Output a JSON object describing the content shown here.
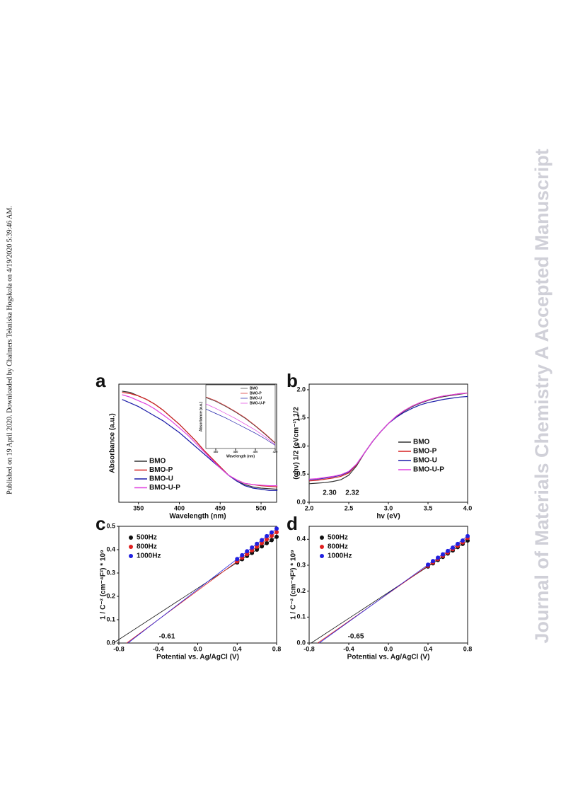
{
  "side_note": "Published on 19 April 2020. Downloaded by Chalmers Tekniska Hogskola on 4/19/2020 5:39:46 AM.",
  "watermark": "Journal of Materials Chemistry A Accepted Manuscript",
  "chart_data": [
    {
      "type": "line",
      "label": "a",
      "xlabel": "Wavelength (nm)",
      "ylabel": "Absorbance (a.u.)",
      "x": [
        330,
        340,
        350,
        360,
        370,
        380,
        390,
        400,
        410,
        420,
        430,
        440,
        450,
        460,
        470,
        480,
        490,
        500,
        510,
        520
      ],
      "xlim": [
        326,
        519
      ],
      "xticks": [
        350,
        400,
        450,
        500
      ],
      "ylim": [
        0,
        1
      ],
      "series": [
        {
          "name": "BMO",
          "color": "#333333",
          "values": [
            0.94,
            0.93,
            0.9,
            0.87,
            0.83,
            0.78,
            0.72,
            0.66,
            0.59,
            0.52,
            0.44,
            0.37,
            0.3,
            0.23,
            0.18,
            0.15,
            0.13,
            0.12,
            0.115,
            0.11
          ]
        },
        {
          "name": "BMO-P",
          "color": "#d62020",
          "values": [
            0.93,
            0.92,
            0.9,
            0.87,
            0.83,
            0.78,
            0.72,
            0.66,
            0.59,
            0.52,
            0.44,
            0.37,
            0.3,
            0.23,
            0.19,
            0.16,
            0.15,
            0.14,
            0.135,
            0.13
          ]
        },
        {
          "name": "BMO-U",
          "color": "#1a1aa8",
          "values": [
            0.87,
            0.84,
            0.81,
            0.77,
            0.73,
            0.69,
            0.64,
            0.59,
            0.53,
            0.47,
            0.41,
            0.35,
            0.29,
            0.23,
            0.18,
            0.14,
            0.12,
            0.11,
            0.1,
            0.1
          ]
        },
        {
          "name": "BMO-U-P",
          "color": "#e040e0",
          "values": [
            0.91,
            0.89,
            0.86,
            0.83,
            0.79,
            0.74,
            0.69,
            0.63,
            0.57,
            0.5,
            0.43,
            0.36,
            0.29,
            0.23,
            0.19,
            0.16,
            0.15,
            0.145,
            0.14,
            0.14
          ]
        }
      ]
    },
    {
      "type": "line",
      "xlabel": "Wavelength (nm)",
      "ylabel": "Absorbance (a.u.)",
      "x": [
        350,
        360,
        370,
        380,
        390,
        400,
        410,
        420
      ],
      "xlim": [
        350,
        420
      ],
      "xticks": [
        360,
        380,
        400,
        420
      ],
      "ylim": [
        0,
        1
      ],
      "series": [
        {
          "name": "BMO",
          "color": "#333333",
          "values": [
            0.8,
            0.74,
            0.66,
            0.57,
            0.47,
            0.35,
            0.22,
            0.08
          ]
        },
        {
          "name": "BMO-P",
          "color": "#d62020",
          "values": [
            0.81,
            0.75,
            0.67,
            0.58,
            0.48,
            0.36,
            0.23,
            0.09
          ]
        },
        {
          "name": "BMO-U",
          "color": "#1a1aa8",
          "values": [
            0.62,
            0.55,
            0.48,
            0.4,
            0.32,
            0.24,
            0.15,
            0.05
          ]
        },
        {
          "name": "BMO-U-P",
          "color": "#e040e0",
          "values": [
            0.7,
            0.63,
            0.55,
            0.47,
            0.38,
            0.29,
            0.18,
            0.06
          ]
        }
      ]
    },
    {
      "type": "line",
      "label": "b",
      "xlabel": "hv (eV)",
      "ylabel": "(αhv) 1/2 (eVcm⁻¹) 1/2",
      "x": [
        2.0,
        2.1,
        2.2,
        2.3,
        2.4,
        2.5,
        2.6,
        2.7,
        2.8,
        2.9,
        3.0,
        3.1,
        3.2,
        3.3,
        3.4,
        3.5,
        3.6,
        3.7,
        3.8,
        3.9,
        4.0
      ],
      "xlim": [
        2.0,
        4.0
      ],
      "xticks": [
        {
          "value": 2,
          "label": "2.0"
        },
        2.5,
        {
          "value": 3,
          "label": "3.0"
        },
        3.5,
        {
          "value": 4,
          "label": "4.0"
        }
      ],
      "ylim": [
        0,
        2.1
      ],
      "yticks": [
        {
          "value": 0,
          "label": "0.0"
        },
        0.5,
        {
          "value": 1,
          "label": "1.0"
        },
        1.5,
        {
          "value": 2,
          "label": "2.0"
        }
      ],
      "annotations": [
        "2.30",
        "2.32"
      ],
      "series": [
        {
          "name": "BMO",
          "color": "#333333",
          "values": [
            0.33,
            0.34,
            0.35,
            0.37,
            0.4,
            0.48,
            0.65,
            0.88,
            1.08,
            1.25,
            1.4,
            1.52,
            1.62,
            1.7,
            1.76,
            1.81,
            1.85,
            1.88,
            1.9,
            1.92,
            1.94
          ]
        },
        {
          "name": "BMO-P",
          "color": "#d62020",
          "values": [
            0.38,
            0.39,
            0.41,
            0.43,
            0.46,
            0.52,
            0.67,
            0.88,
            1.08,
            1.25,
            1.4,
            1.53,
            1.63,
            1.71,
            1.77,
            1.82,
            1.86,
            1.89,
            1.91,
            1.93,
            1.94
          ]
        },
        {
          "name": "BMO-U",
          "color": "#1a1aa8",
          "values": [
            0.4,
            0.41,
            0.43,
            0.45,
            0.48,
            0.54,
            0.68,
            0.88,
            1.08,
            1.25,
            1.4,
            1.51,
            1.6,
            1.67,
            1.73,
            1.77,
            1.8,
            1.83,
            1.85,
            1.87,
            1.88
          ]
        },
        {
          "name": "BMO-U-P",
          "color": "#e040e0",
          "values": [
            0.41,
            0.42,
            0.44,
            0.46,
            0.49,
            0.55,
            0.68,
            0.88,
            1.08,
            1.25,
            1.4,
            1.53,
            1.63,
            1.71,
            1.77,
            1.82,
            1.86,
            1.89,
            1.91,
            1.93,
            1.94
          ]
        }
      ]
    },
    {
      "type": "scatter",
      "label": "c",
      "xlabel": "Potential vs. Ag/AgCl (V)",
      "ylabel": "1 / C⁻² (cm⁻⁴F²) * 10⁹",
      "x": [
        0.4,
        0.45,
        0.5,
        0.55,
        0.6,
        0.65,
        0.7,
        0.75,
        0.8
      ],
      "xlim": [
        -0.8,
        0.8
      ],
      "xticks": [
        -0.8,
        -0.4,
        {
          "value": 0,
          "label": "0.0"
        },
        0.4,
        0.8
      ],
      "ylim": [
        0,
        0.5
      ],
      "yticks": [
        {
          "value": 0,
          "label": "0.0"
        },
        0.1,
        0.2,
        0.3,
        0.4,
        0.5
      ],
      "annotations": [
        "-0.61"
      ],
      "series": [
        {
          "name": "500Hz",
          "color": "#111111",
          "values": [
            0.345,
            0.359,
            0.373,
            0.386,
            0.4,
            0.414,
            0.428,
            0.441,
            0.455
          ]
        },
        {
          "name": "800Hz",
          "color": "#e02020",
          "values": [
            0.35,
            0.366,
            0.381,
            0.397,
            0.413,
            0.428,
            0.444,
            0.459,
            0.475
          ]
        },
        {
          "name": "1000Hz",
          "color": "#2020e0",
          "values": [
            0.36,
            0.376,
            0.393,
            0.409,
            0.425,
            0.441,
            0.458,
            0.474,
            0.49
          ]
        }
      ]
    },
    {
      "type": "scatter",
      "label": "d",
      "xlabel": "Potential vs. Ag/AgCl (V)",
      "ylabel": "1 / C⁻² (cm⁻⁴F²) * 10⁹",
      "x": [
        0.4,
        0.45,
        0.5,
        0.55,
        0.6,
        0.65,
        0.7,
        0.75,
        0.8
      ],
      "xlim": [
        -0.8,
        0.8
      ],
      "xticks": [
        -0.8,
        -0.4,
        {
          "value": 0,
          "label": "0.0"
        },
        0.4,
        0.8
      ],
      "ylim": [
        0,
        0.45
      ],
      "yticks": [
        {
          "value": 0,
          "label": "0.0"
        },
        0.1,
        0.2,
        0.3,
        0.4
      ],
      "annotations": [
        "-0.65"
      ],
      "series": [
        {
          "name": "500Hz",
          "color": "#111111",
          "values": [
            0.295,
            0.307,
            0.32,
            0.332,
            0.345,
            0.357,
            0.37,
            0.382,
            0.395
          ]
        },
        {
          "name": "800Hz",
          "color": "#e02020",
          "values": [
            0.298,
            0.311,
            0.324,
            0.336,
            0.349,
            0.362,
            0.375,
            0.388,
            0.405
          ]
        },
        {
          "name": "1000Hz",
          "color": "#2020e0",
          "values": [
            0.302,
            0.316,
            0.329,
            0.342,
            0.355,
            0.368,
            0.382,
            0.395,
            0.412
          ]
        }
      ]
    }
  ]
}
